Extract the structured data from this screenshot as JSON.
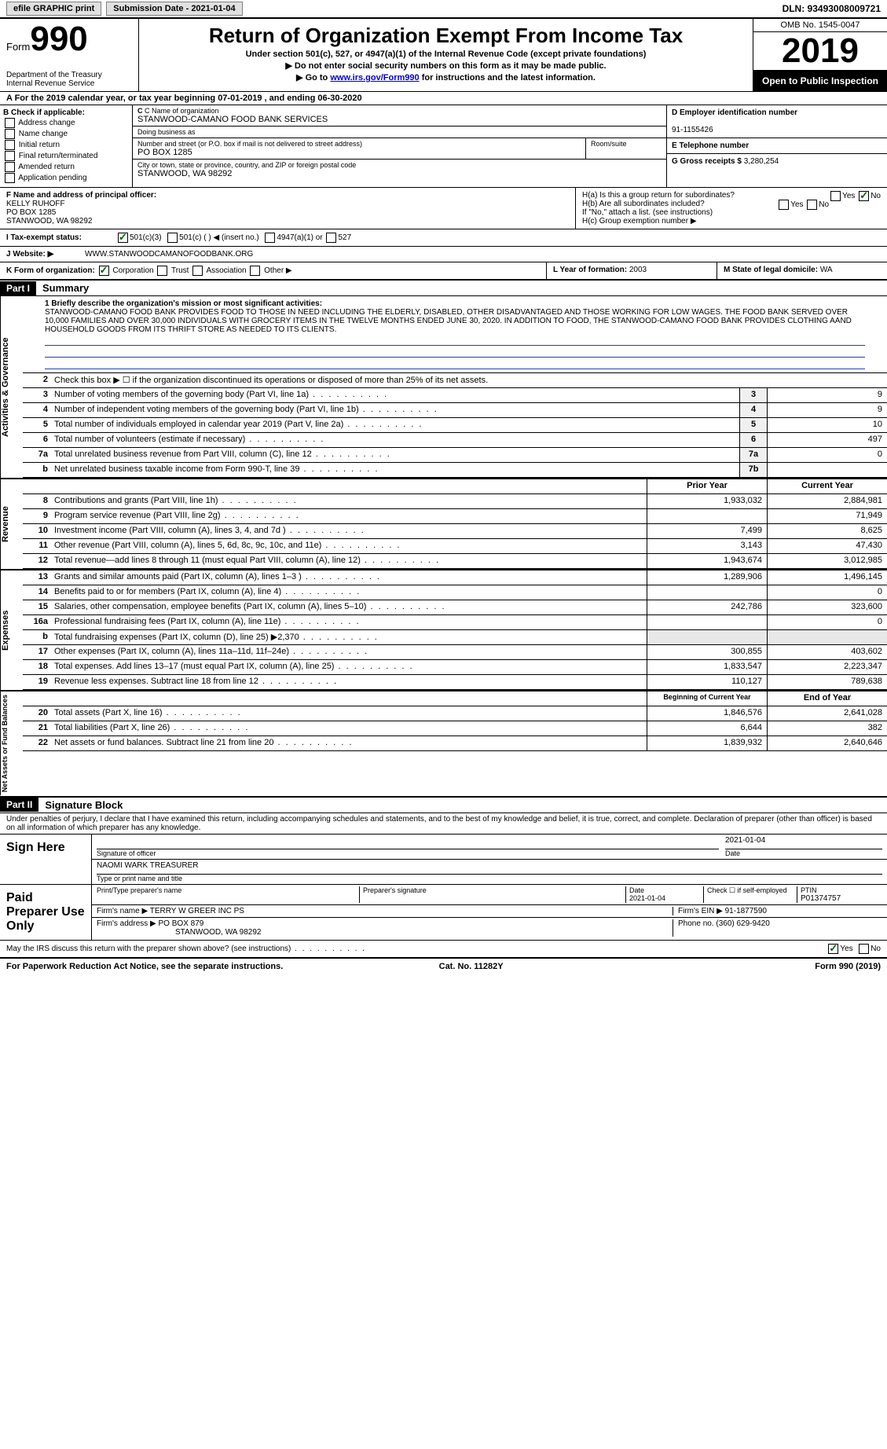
{
  "topbar": {
    "efile": "efile GRAPHIC print",
    "submission_label": "Submission Date - 2021-01-04",
    "dln_label": "DLN: 93493008009721"
  },
  "header": {
    "form_word": "Form",
    "form_number": "990",
    "dept": "Department of the Treasury\nInternal Revenue Service",
    "title": "Return of Organization Exempt From Income Tax",
    "subtitle1": "Under section 501(c), 527, or 4947(a)(1) of the Internal Revenue Code (except private foundations)",
    "subtitle2": "▶ Do not enter social security numbers on this form as it may be made public.",
    "subtitle3_pre": "▶ Go to ",
    "subtitle3_link": "www.irs.gov/Form990",
    "subtitle3_post": " for instructions and the latest information.",
    "omb": "OMB No. 1545-0047",
    "year": "2019",
    "inspection": "Open to Public Inspection"
  },
  "row_a": "A For the 2019 calendar year, or tax year beginning 07-01-2019     , and ending 06-30-2020",
  "section_b": {
    "title": "B Check if applicable:",
    "opts": [
      "Address change",
      "Name change",
      "Initial return",
      "Final return/terminated",
      "Amended return",
      "Application pending"
    ]
  },
  "section_c": {
    "name_lbl": "C Name of organization",
    "name": "STANWOOD-CAMANO FOOD BANK SERVICES",
    "dba_lbl": "Doing business as",
    "dba": "",
    "addr_lbl": "Number and street (or P.O. box if mail is not delivered to street address)",
    "addr": "PO BOX 1285",
    "room_lbl": "Room/suite",
    "city_lbl": "City or town, state or province, country, and ZIP or foreign postal code",
    "city": "STANWOOD, WA  98292"
  },
  "section_d": {
    "lbl": "D Employer identification number",
    "val": "91-1155426"
  },
  "section_e": {
    "lbl": "E Telephone number",
    "val": ""
  },
  "section_g": {
    "lbl": "G Gross receipts $ ",
    "val": "3,280,254"
  },
  "section_f": {
    "lbl": "F Name and address of principal officer:",
    "name": "KELLY RUHOFF",
    "addr1": "PO BOX 1285",
    "addr2": "STANWOOD, WA  98292"
  },
  "section_h": {
    "ha": "H(a)  Is this a group return for subordinates?",
    "hb": "H(b)  Are all subordinates included?",
    "hb_note": "If \"No,\" attach a list. (see instructions)",
    "hc": "H(c)  Group exemption number ▶",
    "yes": "Yes",
    "no": "No"
  },
  "row_i": {
    "lbl": "I   Tax-exempt status:",
    "o1": "501(c)(3)",
    "o2": "501(c) (   ) ◀ (insert no.)",
    "o3": "4947(a)(1) or",
    "o4": "527"
  },
  "row_j": {
    "lbl": "J   Website: ▶",
    "val": "WWW.STANWOODCAMANOFOODBANK.ORG"
  },
  "row_k": {
    "lbl": "K Form of organization:",
    "o1": "Corporation",
    "o2": "Trust",
    "o3": "Association",
    "o4": "Other ▶"
  },
  "row_l": {
    "lbl": "L Year of formation: ",
    "val": "2003"
  },
  "row_m": {
    "lbl": "M State of legal domicile: ",
    "val": "WA"
  },
  "part1": {
    "tag": "Part I",
    "title": "Summary",
    "tabs": {
      "gov": "Activities & Governance",
      "rev": "Revenue",
      "exp": "Expenses",
      "net": "Net Assets or Fund Balances"
    },
    "line1_lbl": "1  Briefly describe the organization's mission or most significant activities:",
    "mission": "STANWOOD-CAMANO FOOD BANK PROVIDES FOOD TO THOSE IN NEED INCLUDING THE ELDERLY, DISABLED, OTHER DISADVANTAGED AND THOSE WORKING FOR LOW WAGES. THE FOOD BANK SERVED OVER 10,000 FAMILIES AND OVER 30,000 INDIVIDUALS WITH GROCERY ITEMS IN THE TWELVE MONTHS ENDED JUNE 30, 2020. IN ADDITION TO FOOD, THE STANWOOD-CAMANO FOOD BANK PROVIDES CLOTHING AAND HOUSEHOLD GOODS FROM ITS THRIFT STORE AS NEEDED TO ITS CLIENTS.",
    "line2": "Check this box ▶ ☐  if the organization discontinued its operations or disposed of more than 25% of its net assets.",
    "lines_single": [
      {
        "n": "3",
        "d": "Number of voting members of the governing body (Part VI, line 1a)",
        "b": "3",
        "v": "9"
      },
      {
        "n": "4",
        "d": "Number of independent voting members of the governing body (Part VI, line 1b)",
        "b": "4",
        "v": "9"
      },
      {
        "n": "5",
        "d": "Total number of individuals employed in calendar year 2019 (Part V, line 2a)",
        "b": "5",
        "v": "10"
      },
      {
        "n": "6",
        "d": "Total number of volunteers (estimate if necessary)",
        "b": "6",
        "v": "497"
      },
      {
        "n": "7a",
        "d": "Total unrelated business revenue from Part VIII, column (C), line 12",
        "b": "7a",
        "v": "0"
      },
      {
        "n": "b",
        "d": "Net unrelated business taxable income from Form 990-T, line 39",
        "b": "7b",
        "v": ""
      }
    ],
    "col_prior": "Prior Year",
    "col_current": "Current Year",
    "revenue": [
      {
        "n": "8",
        "d": "Contributions and grants (Part VIII, line 1h)",
        "p": "1,933,032",
        "c": "2,884,981"
      },
      {
        "n": "9",
        "d": "Program service revenue (Part VIII, line 2g)",
        "p": "",
        "c": "71,949"
      },
      {
        "n": "10",
        "d": "Investment income (Part VIII, column (A), lines 3, 4, and 7d )",
        "p": "7,499",
        "c": "8,625"
      },
      {
        "n": "11",
        "d": "Other revenue (Part VIII, column (A), lines 5, 6d, 8c, 9c, 10c, and 11e)",
        "p": "3,143",
        "c": "47,430"
      },
      {
        "n": "12",
        "d": "Total revenue—add lines 8 through 11 (must equal Part VIII, column (A), line 12)",
        "p": "1,943,674",
        "c": "3,012,985"
      }
    ],
    "expenses": [
      {
        "n": "13",
        "d": "Grants and similar amounts paid (Part IX, column (A), lines 1–3 )",
        "p": "1,289,906",
        "c": "1,496,145"
      },
      {
        "n": "14",
        "d": "Benefits paid to or for members (Part IX, column (A), line 4)",
        "p": "",
        "c": "0"
      },
      {
        "n": "15",
        "d": "Salaries, other compensation, employee benefits (Part IX, column (A), lines 5–10)",
        "p": "242,786",
        "c": "323,600"
      },
      {
        "n": "16a",
        "d": "Professional fundraising fees (Part IX, column (A), line 11e)",
        "p": "",
        "c": "0"
      },
      {
        "n": "b",
        "d": "Total fundraising expenses (Part IX, column (D), line 25) ▶2,370",
        "p": "",
        "c": "",
        "gray": true
      },
      {
        "n": "17",
        "d": "Other expenses (Part IX, column (A), lines 11a–11d, 11f–24e)",
        "p": "300,855",
        "c": "403,602"
      },
      {
        "n": "18",
        "d": "Total expenses. Add lines 13–17 (must equal Part IX, column (A), line 25)",
        "p": "1,833,547",
        "c": "2,223,347"
      },
      {
        "n": "19",
        "d": "Revenue less expenses. Subtract line 18 from line 12",
        "p": "110,127",
        "c": "789,638"
      }
    ],
    "col_begin": "Beginning of Current Year",
    "col_end": "End of Year",
    "netassets": [
      {
        "n": "20",
        "d": "Total assets (Part X, line 16)",
        "p": "1,846,576",
        "c": "2,641,028"
      },
      {
        "n": "21",
        "d": "Total liabilities (Part X, line 26)",
        "p": "6,644",
        "c": "382"
      },
      {
        "n": "22",
        "d": "Net assets or fund balances. Subtract line 21 from line 20",
        "p": "1,839,932",
        "c": "2,640,646"
      }
    ]
  },
  "part2": {
    "tag": "Part II",
    "title": "Signature Block",
    "perjury": "Under penalties of perjury, I declare that I have examined this return, including accompanying schedules and statements, and to the best of my knowledge and belief, it is true, correct, and complete. Declaration of preparer (other than officer) is based on all information of which preparer has any knowledge.",
    "sign_here": "Sign Here",
    "sig_officer_lbl": "Signature of officer",
    "sig_date": "2021-01-04",
    "date_lbl": "Date",
    "officer_name": "NAOMI WARK  TREASURER",
    "officer_name_lbl": "Type or print name and title",
    "paid_prep": "Paid Preparer Use Only",
    "prep_name_lbl": "Print/Type preparer's name",
    "prep_sig_lbl": "Preparer's signature",
    "prep_date_lbl": "Date",
    "prep_date": "2021-01-04",
    "check_if": "Check ☐ if self-employed",
    "ptin_lbl": "PTIN",
    "ptin": "P01374757",
    "firm_name_lbl": "Firm's name     ▶ ",
    "firm_name": "TERRY W GREER INC PS",
    "firm_ein_lbl": "Firm's EIN ▶ ",
    "firm_ein": "91-1877590",
    "firm_addr_lbl": "Firm's address ▶ ",
    "firm_addr": "PO BOX 879",
    "firm_city": "STANWOOD, WA  98292",
    "phone_lbl": "Phone no. ",
    "phone": "(360) 629-9420",
    "discuss": "May the IRS discuss this return with the preparer shown above? (see instructions)",
    "yes": "Yes",
    "no": "No"
  },
  "footer": {
    "left": "For Paperwork Reduction Act Notice, see the separate instructions.",
    "mid": "Cat. No. 11282Y",
    "right": "Form 990 (2019)"
  }
}
